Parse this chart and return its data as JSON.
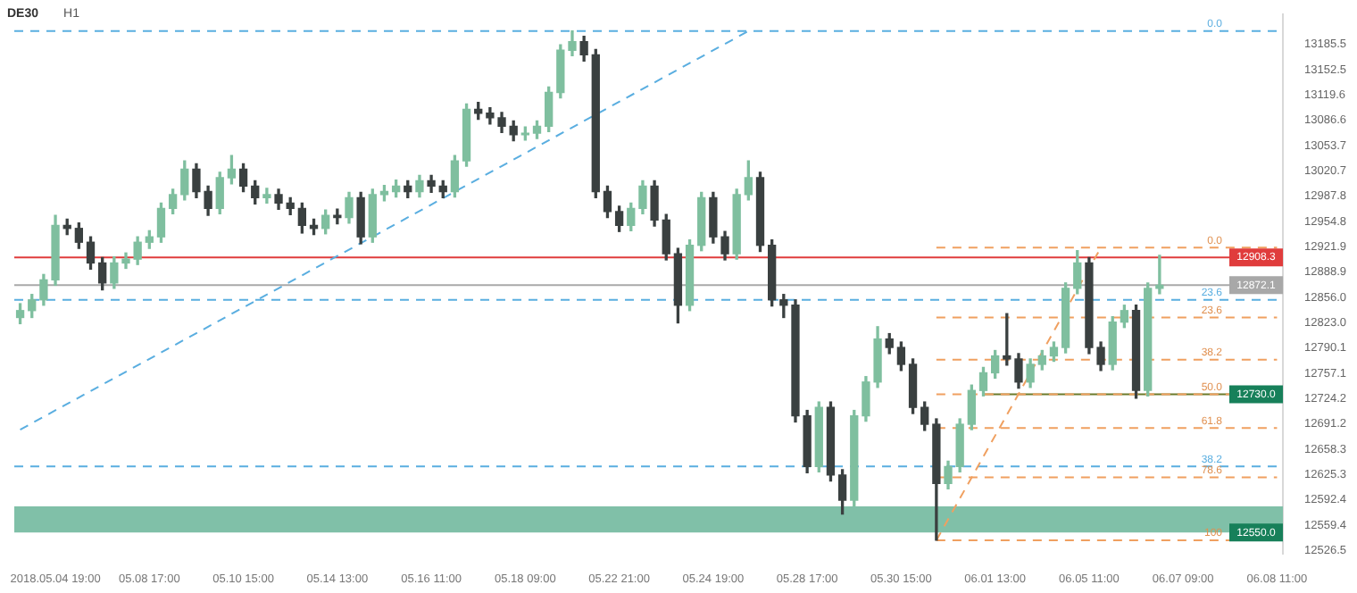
{
  "chart_data": {
    "type": "candlestick",
    "title": "DE30",
    "subtitle": "H1",
    "categories": [
      null,
      null,
      null,
      "2018.05.04 19:00",
      null,
      null,
      null,
      null,
      null,
      null,
      null,
      "05.08 17:00",
      null,
      null,
      null,
      null,
      null,
      null,
      null,
      "05.10 15:00",
      null,
      null,
      null,
      null,
      null,
      null,
      null,
      "05.14 13:00",
      null,
      null,
      null,
      null,
      null,
      null,
      null,
      "05.16 11:00",
      null,
      null,
      null,
      null,
      null,
      null,
      null,
      "05.18 09:00",
      null,
      null,
      null,
      null,
      null,
      null,
      null,
      "05.22 21:00",
      null,
      null,
      null,
      null,
      null,
      null,
      null,
      "05.24 19:00",
      null,
      null,
      null,
      null,
      null,
      null,
      null,
      "05.28 17:00",
      null,
      null,
      null,
      null,
      null,
      null,
      null,
      "05.30 15:00",
      null,
      null,
      null,
      null,
      null,
      null,
      null,
      "06.01 13:00",
      null,
      null,
      null,
      null,
      null,
      null,
      null,
      "06.05 11:00",
      null,
      null,
      null,
      null,
      null,
      null,
      null,
      "06.07 09:00",
      null,
      null,
      null,
      null,
      null,
      null,
      null,
      "06.08 11:00"
    ],
    "ohlc": [
      [
        12830,
        12848,
        12822,
        12839
      ],
      [
        12839,
        12860,
        12830,
        12853
      ],
      [
        12853,
        12886,
        12846,
        12879
      ],
      [
        12879,
        12963,
        12872,
        12950
      ],
      [
        12950,
        12958,
        12938,
        12946
      ],
      [
        12946,
        12953,
        12920,
        12928
      ],
      [
        12928,
        12935,
        12893,
        12901
      ],
      [
        12901,
        12908,
        12866,
        12875
      ],
      [
        12875,
        12909,
        12868,
        12901
      ],
      [
        12901,
        12914,
        12894,
        12906
      ],
      [
        12906,
        12935,
        12899,
        12928
      ],
      [
        12928,
        12943,
        12920,
        12935
      ],
      [
        12935,
        12979,
        12928,
        12972
      ],
      [
        12972,
        12997,
        12965,
        12990
      ],
      [
        12990,
        13034,
        12983,
        13023
      ],
      [
        13023,
        13030,
        12986,
        12994
      ],
      [
        12994,
        13001,
        12963,
        12972
      ],
      [
        12972,
        13019,
        12965,
        13012
      ],
      [
        13012,
        13041,
        13004,
        13023
      ],
      [
        13023,
        13030,
        12994,
        13001
      ],
      [
        13001,
        13008,
        12978,
        12986
      ],
      [
        12986,
        12998,
        12979,
        12990
      ],
      [
        12990,
        12997,
        12971,
        12979
      ],
      [
        12979,
        12986,
        12964,
        12972
      ],
      [
        12972,
        12979,
        12940,
        12950
      ],
      [
        12950,
        12958,
        12938,
        12946
      ],
      [
        12946,
        12970,
        12939,
        12963
      ],
      [
        12963,
        12971,
        12952,
        12960
      ],
      [
        12960,
        12993,
        12953,
        12986
      ],
      [
        12986,
        12993,
        12926,
        12935
      ],
      [
        12935,
        12997,
        12928,
        12990
      ],
      [
        12990,
        13002,
        12982,
        12994
      ],
      [
        12994,
        13009,
        12987,
        13001
      ],
      [
        13001,
        13008,
        12986,
        12994
      ],
      [
        12994,
        13015,
        12987,
        13008
      ],
      [
        13008,
        13015,
        12993,
        13001
      ],
      [
        13001,
        13008,
        12986,
        12994
      ],
      [
        12994,
        13041,
        12987,
        13034
      ],
      [
        13034,
        13108,
        13027,
        13101
      ],
      [
        13101,
        13110,
        13088,
        13096
      ],
      [
        13096,
        13103,
        13082,
        13090
      ],
      [
        13090,
        13097,
        13071,
        13079
      ],
      [
        13079,
        13086,
        13060,
        13068
      ],
      [
        13068,
        13078,
        13061,
        13070
      ],
      [
        13070,
        13086,
        13063,
        13079
      ],
      [
        13079,
        13130,
        13072,
        13123
      ],
      [
        13123,
        13185,
        13116,
        13178
      ],
      [
        13178,
        13203,
        13171,
        13189
      ],
      [
        13189,
        13196,
        13164,
        13172
      ],
      [
        13172,
        13179,
        12986,
        12994
      ],
      [
        12994,
        13001,
        12960,
        12968
      ],
      [
        12968,
        12975,
        12942,
        12950
      ],
      [
        12950,
        12979,
        12943,
        12972
      ],
      [
        12972,
        13008,
        12965,
        13001
      ],
      [
        13001,
        13008,
        12949,
        12957
      ],
      [
        12957,
        12964,
        12905,
        12913
      ],
      [
        12913,
        12920,
        12823,
        12846
      ],
      [
        12846,
        12931,
        12839,
        12924
      ],
      [
        12924,
        12993,
        12917,
        12986
      ],
      [
        12986,
        12993,
        12927,
        12935
      ],
      [
        12935,
        12942,
        12905,
        12913
      ],
      [
        12913,
        12997,
        12906,
        12990
      ],
      [
        12990,
        13034,
        12983,
        13012
      ],
      [
        13012,
        13019,
        12916,
        12924
      ],
      [
        12924,
        12931,
        12845,
        12853
      ],
      [
        12853,
        12860,
        12830,
        12846
      ],
      [
        12846,
        12853,
        12694,
        12702
      ],
      [
        12702,
        12709,
        12628,
        12636
      ],
      [
        12636,
        12720,
        12629,
        12713
      ],
      [
        12713,
        12720,
        12617,
        12625
      ],
      [
        12625,
        12632,
        12574,
        12592
      ],
      [
        12592,
        12709,
        12585,
        12702
      ],
      [
        12702,
        12753,
        12695,
        12746
      ],
      [
        12746,
        12818,
        12739,
        12802
      ],
      [
        12802,
        12809,
        12783,
        12791
      ],
      [
        12791,
        12798,
        12761,
        12769
      ],
      [
        12769,
        12776,
        12705,
        12713
      ],
      [
        12713,
        12720,
        12683,
        12691
      ],
      [
        12691,
        12698,
        12540,
        12614
      ],
      [
        12614,
        12643,
        12607,
        12636
      ],
      [
        12636,
        12698,
        12629,
        12691
      ],
      [
        12691,
        12742,
        12684,
        12735
      ],
      [
        12735,
        12765,
        12728,
        12758
      ],
      [
        12758,
        12787,
        12751,
        12780
      ],
      [
        12780,
        12835,
        12768,
        12776
      ],
      [
        12776,
        12783,
        12738,
        12746
      ],
      [
        12746,
        12776,
        12739,
        12769
      ],
      [
        12769,
        12787,
        12762,
        12780
      ],
      [
        12780,
        12798,
        12773,
        12791
      ],
      [
        12791,
        12875,
        12784,
        12868
      ],
      [
        12868,
        12917,
        12861,
        12901
      ],
      [
        12901,
        12908,
        12783,
        12791
      ],
      [
        12791,
        12798,
        12761,
        12769
      ],
      [
        12769,
        12831,
        12762,
        12824
      ],
      [
        12824,
        12846,
        12817,
        12839
      ],
      [
        12839,
        12846,
        12725,
        12735
      ],
      [
        12735,
        12875,
        12728,
        12868
      ],
      [
        12868,
        12911,
        12861,
        12872.1
      ],
      null,
      null,
      null,
      null,
      null,
      null,
      null,
      null,
      null,
      null
    ],
    "series": [
      {
        "type": "line",
        "color": "#5aaee0",
        "line_style": "dashed",
        "values": [
          12684,
          null,
          null,
          null,
          null,
          null,
          null,
          null,
          null,
          null,
          null,
          null,
          null,
          null,
          null,
          null,
          null,
          null,
          null,
          null,
          null,
          null,
          null,
          null,
          null,
          null,
          null,
          null,
          null,
          null,
          null,
          null,
          null,
          null,
          null,
          null,
          null,
          null,
          null,
          null,
          null,
          null,
          null,
          null,
          null,
          null,
          null,
          null,
          null,
          null,
          null,
          null,
          null,
          null,
          null,
          null,
          null,
          null,
          null,
          null,
          null,
          null,
          13203,
          null,
          null,
          null,
          null,
          null,
          null,
          null,
          null,
          null,
          null,
          null,
          null,
          null,
          null,
          null,
          null,
          null,
          null,
          null,
          null,
          null,
          null,
          null,
          null,
          null,
          null,
          null,
          null,
          null,
          null,
          null,
          null,
          null,
          null,
          null,
          null,
          null,
          null,
          null,
          null,
          null,
          null,
          null,
          null,
          null
        ]
      },
      {
        "type": "line",
        "color": "#f0a060",
        "line_style": "dashed",
        "values": [
          null,
          null,
          null,
          null,
          null,
          null,
          null,
          null,
          null,
          null,
          null,
          null,
          null,
          null,
          null,
          null,
          null,
          null,
          null,
          null,
          null,
          null,
          null,
          null,
          null,
          null,
          null,
          null,
          null,
          null,
          null,
          null,
          null,
          null,
          null,
          null,
          null,
          null,
          null,
          null,
          null,
          null,
          null,
          null,
          null,
          null,
          null,
          null,
          null,
          null,
          null,
          null,
          null,
          null,
          null,
          null,
          null,
          null,
          null,
          null,
          null,
          null,
          null,
          null,
          null,
          null,
          null,
          null,
          null,
          null,
          null,
          null,
          null,
          null,
          null,
          null,
          null,
          null,
          12540,
          null,
          null,
          null,
          null,
          null,
          null,
          null,
          null,
          null,
          null,
          null,
          null,
          null,
          12921,
          null,
          null,
          null,
          null,
          null,
          null,
          null,
          null,
          null,
          null,
          null,
          null,
          null,
          null,
          null
        ]
      },
      {
        "type": "line",
        "color": "#f0a060",
        "line_style": "dashed",
        "values": [
          null,
          null,
          null,
          null,
          null,
          null,
          null,
          null,
          null,
          null,
          null,
          null,
          null,
          null,
          null,
          null,
          null,
          null,
          null,
          null,
          null,
          null,
          null,
          null,
          null,
          null,
          null,
          null,
          null,
          null,
          null,
          null,
          null,
          null,
          null,
          null,
          null,
          null,
          null,
          null,
          null,
          null,
          null,
          null,
          null,
          null,
          null,
          null,
          null,
          null,
          null,
          null,
          null,
          null,
          null,
          null,
          null,
          null,
          null,
          null,
          null,
          null,
          null,
          null,
          null,
          null,
          null,
          null,
          null,
          null,
          null,
          null,
          null,
          null,
          null,
          null,
          null,
          null,
          12921,
          12921,
          12921,
          12921,
          12921,
          12921,
          12921,
          12921,
          12921,
          12921,
          12921,
          12921,
          12921,
          12921,
          12921,
          12921,
          12921,
          12921,
          12921,
          12921,
          12921,
          12921,
          12921,
          12921,
          12921,
          12921,
          12921,
          12921,
          12921,
          12921
        ]
      },
      {
        "type": "line",
        "color": "#f0a060",
        "line_style": "dashed",
        "values": [
          null,
          null,
          null,
          null,
          null,
          null,
          null,
          null,
          null,
          null,
          null,
          null,
          null,
          null,
          null,
          null,
          null,
          null,
          null,
          null,
          null,
          null,
          null,
          null,
          null,
          null,
          null,
          null,
          null,
          null,
          null,
          null,
          null,
          null,
          null,
          null,
          null,
          null,
          null,
          null,
          null,
          null,
          null,
          null,
          null,
          null,
          null,
          null,
          null,
          null,
          null,
          null,
          null,
          null,
          null,
          null,
          null,
          null,
          null,
          null,
          null,
          null,
          null,
          null,
          null,
          null,
          null,
          null,
          null,
          null,
          null,
          null,
          null,
          null,
          null,
          null,
          null,
          null,
          12830,
          12830,
          12830,
          12830,
          12830,
          12830,
          12830,
          12830,
          12830,
          12830,
          12830,
          12830,
          12830,
          12830,
          12830,
          12830,
          12830,
          12830,
          12830,
          12830,
          12830,
          12830,
          12830,
          12830,
          12830,
          12830,
          12830,
          12830,
          12830,
          12830
        ]
      },
      {
        "type": "line",
        "color": "#f0a060",
        "line_style": "dashed",
        "values": [
          null,
          null,
          null,
          null,
          null,
          null,
          null,
          null,
          null,
          null,
          null,
          null,
          null,
          null,
          null,
          null,
          null,
          null,
          null,
          null,
          null,
          null,
          null,
          null,
          null,
          null,
          null,
          null,
          null,
          null,
          null,
          null,
          null,
          null,
          null,
          null,
          null,
          null,
          null,
          null,
          null,
          null,
          null,
          null,
          null,
          null,
          null,
          null,
          null,
          null,
          null,
          null,
          null,
          null,
          null,
          null,
          null,
          null,
          null,
          null,
          null,
          null,
          null,
          null,
          null,
          null,
          null,
          null,
          null,
          null,
          null,
          null,
          null,
          null,
          null,
          null,
          null,
          null,
          12775,
          12775,
          12775,
          12775,
          12775,
          12775,
          12775,
          12775,
          12775,
          12775,
          12775,
          12775,
          12775,
          12775,
          12775,
          12775,
          12775,
          12775,
          12775,
          12775,
          12775,
          12775,
          12775,
          12775,
          12775,
          12775,
          12775,
          12775,
          12775,
          12775
        ]
      },
      {
        "type": "line",
        "color": "#f0a060",
        "line_style": "dashed",
        "values": [
          null,
          null,
          null,
          null,
          null,
          null,
          null,
          null,
          null,
          null,
          null,
          null,
          null,
          null,
          null,
          null,
          null,
          null,
          null,
          null,
          null,
          null,
          null,
          null,
          null,
          null,
          null,
          null,
          null,
          null,
          null,
          null,
          null,
          null,
          null,
          null,
          null,
          null,
          null,
          null,
          null,
          null,
          null,
          null,
          null,
          null,
          null,
          null,
          null,
          null,
          null,
          null,
          null,
          null,
          null,
          null,
          null,
          null,
          null,
          null,
          null,
          null,
          null,
          null,
          null,
          null,
          null,
          null,
          null,
          null,
          null,
          null,
          null,
          null,
          null,
          null,
          null,
          null,
          12730,
          12730,
          12730,
          12730,
          12730,
          12730,
          12730,
          12730,
          12730,
          12730,
          12730,
          12730,
          12730,
          12730,
          12730,
          12730,
          12730,
          12730,
          12730,
          12730,
          12730,
          12730,
          12730,
          12730,
          12730,
          12730,
          null,
          null,
          null,
          null
        ]
      },
      {
        "type": "line",
        "color": "#f0a060",
        "line_style": "dashed",
        "values": [
          null,
          null,
          null,
          null,
          null,
          null,
          null,
          null,
          null,
          null,
          null,
          null,
          null,
          null,
          null,
          null,
          null,
          null,
          null,
          null,
          null,
          null,
          null,
          null,
          null,
          null,
          null,
          null,
          null,
          null,
          null,
          null,
          null,
          null,
          null,
          null,
          null,
          null,
          null,
          null,
          null,
          null,
          null,
          null,
          null,
          null,
          null,
          null,
          null,
          null,
          null,
          null,
          null,
          null,
          null,
          null,
          null,
          null,
          null,
          null,
          null,
          null,
          null,
          null,
          null,
          null,
          null,
          null,
          null,
          null,
          null,
          null,
          null,
          null,
          null,
          null,
          null,
          null,
          12686,
          12686,
          12686,
          12686,
          12686,
          12686,
          12686,
          12686,
          12686,
          12686,
          12686,
          12686,
          12686,
          12686,
          12686,
          12686,
          12686,
          12686,
          12686,
          12686,
          12686,
          12686,
          12686,
          12686,
          12686,
          12686,
          12686,
          12686,
          12686,
          12686
        ]
      },
      {
        "type": "line",
        "color": "#f0a060",
        "line_style": "dashed",
        "values": [
          null,
          null,
          null,
          null,
          null,
          null,
          null,
          null,
          null,
          null,
          null,
          null,
          null,
          null,
          null,
          null,
          null,
          null,
          null,
          null,
          null,
          null,
          null,
          null,
          null,
          null,
          null,
          null,
          null,
          null,
          null,
          null,
          null,
          null,
          null,
          null,
          null,
          null,
          null,
          null,
          null,
          null,
          null,
          null,
          null,
          null,
          null,
          null,
          null,
          null,
          null,
          null,
          null,
          null,
          null,
          null,
          null,
          null,
          null,
          null,
          null,
          null,
          null,
          null,
          null,
          null,
          null,
          null,
          null,
          null,
          null,
          null,
          null,
          null,
          null,
          null,
          null,
          null,
          12622,
          12622,
          12622,
          12622,
          12622,
          12622,
          12622,
          12622,
          12622,
          12622,
          12622,
          12622,
          12622,
          12622,
          12622,
          12622,
          12622,
          12622,
          12622,
          12622,
          12622,
          12622,
          12622,
          12622,
          12622,
          12622,
          12622,
          12622,
          12622,
          12622
        ]
      },
      {
        "type": "line",
        "color": "#f0a060",
        "line_style": "dashed",
        "values": [
          null,
          null,
          null,
          null,
          null,
          null,
          null,
          null,
          null,
          null,
          null,
          null,
          null,
          null,
          null,
          null,
          null,
          null,
          null,
          null,
          null,
          null,
          null,
          null,
          null,
          null,
          null,
          null,
          null,
          null,
          null,
          null,
          null,
          null,
          null,
          null,
          null,
          null,
          null,
          null,
          null,
          null,
          null,
          null,
          null,
          null,
          null,
          null,
          null,
          null,
          null,
          null,
          null,
          null,
          null,
          null,
          null,
          null,
          null,
          null,
          null,
          null,
          null,
          null,
          null,
          null,
          null,
          null,
          null,
          null,
          null,
          null,
          null,
          null,
          null,
          null,
          null,
          null,
          12540,
          12540,
          12540,
          12540,
          12540,
          12540,
          12540,
          12540,
          12540,
          12540,
          12540,
          12540,
          12540,
          12540,
          12540,
          12540,
          12540,
          12540,
          12540,
          12540,
          12540,
          12540,
          12540,
          12540,
          12540,
          12540,
          null,
          null,
          null,
          null
        ]
      },
      {
        "type": "line",
        "color": "#6b7a2a",
        "line_style": "solid",
        "values": [
          null,
          null,
          null,
          null,
          null,
          null,
          null,
          null,
          null,
          null,
          null,
          null,
          null,
          null,
          null,
          null,
          null,
          null,
          null,
          null,
          null,
          null,
          null,
          null,
          null,
          null,
          null,
          null,
          null,
          null,
          null,
          null,
          null,
          null,
          null,
          null,
          null,
          null,
          null,
          null,
          null,
          null,
          null,
          null,
          null,
          null,
          null,
          null,
          null,
          null,
          null,
          null,
          null,
          null,
          null,
          null,
          null,
          null,
          null,
          null,
          null,
          null,
          null,
          null,
          null,
          null,
          null,
          null,
          null,
          null,
          null,
          null,
          null,
          null,
          null,
          null,
          null,
          null,
          null,
          null,
          null,
          null,
          12730,
          12730,
          12730,
          12730,
          12730,
          12730,
          12730,
          12730,
          12730,
          12730,
          12730,
          12730,
          12730,
          12730,
          12730,
          12730,
          12730,
          12730,
          12730,
          12730,
          12730,
          12730,
          null,
          null,
          null,
          null
        ]
      }
    ],
    "ref_lines": [
      {
        "axis": "y",
        "value": 13203,
        "color": "#5aaee0",
        "line_style": "dashed"
      },
      {
        "axis": "y",
        "value": 12853,
        "color": "#5aaee0",
        "line_style": "dashed"
      },
      {
        "axis": "y",
        "value": 12636,
        "color": "#5aaee0",
        "line_style": "dashed"
      },
      {
        "axis": "y",
        "value": 12908.3,
        "label": "12908.3",
        "color": "#e03c3c",
        "line_style": "solid"
      },
      {
        "axis": "y",
        "value": 12872.1,
        "label": "12872.1",
        "color": "#a8a8a8",
        "line_style": "solid"
      }
    ],
    "bands": [
      {
        "axis": "y",
        "from": 12550,
        "to": 12584,
        "label": "12550.0",
        "color": "#80c0a8"
      }
    ],
    "annotations": [
      {
        "text": "0.0",
        "y": 13203
      },
      {
        "text": "23.6",
        "y": 12853
      },
      {
        "text": "38.2",
        "y": 12636
      },
      {
        "text": "0.0",
        "y": 12921
      },
      {
        "text": "23.6",
        "y": 12830
      },
      {
        "text": "38.2",
        "y": 12775
      },
      {
        "text": "50.0",
        "y": 12730
      },
      {
        "text": "61.8",
        "y": 12686
      },
      {
        "text": "78.6",
        "y": 12622
      },
      {
        "text": "100",
        "y": 12540
      },
      {
        "text": "12730.0",
        "y": 12730
      }
    ],
    "ylim": [
      12522,
      13225
    ],
    "yticks": [
      12526.5,
      12559.4,
      12592.4,
      12625.3,
      12658.3,
      12691.2,
      12724.2,
      12757.1,
      12790.1,
      {
        "value": 12823,
        "label": "12823.0"
      },
      {
        "value": 12856,
        "label": "12856.0"
      },
      12888.9,
      12921.9,
      12954.8,
      12987.8,
      13020.7,
      13053.7,
      13086.6,
      13119.6,
      13152.5,
      13185.5
    ],
    "grid": false,
    "legend": false
  }
}
